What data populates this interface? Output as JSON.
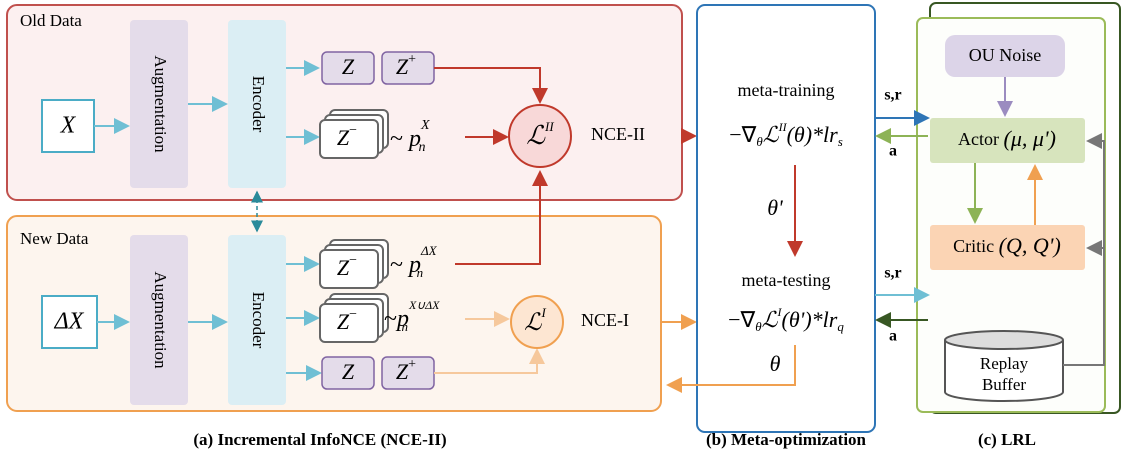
{
  "old_data": {
    "label": "Old Data",
    "input": "X",
    "augmentation": "Augmentation",
    "encoder": "Encoder",
    "z": "Z",
    "z_plus": {
      "base": "Z",
      "sup": "+"
    },
    "z_minus": {
      "base": "Z",
      "sup": "−"
    },
    "dist": {
      "prefix": "~ ",
      "base": "p",
      "sub": "n",
      "sup": "X"
    },
    "loss": {
      "base": "ℒ",
      "sup": "II"
    },
    "loss_name": "NCE-II"
  },
  "new_data": {
    "label": "New Data",
    "input": "ΔX",
    "augmentation": "Augmentation",
    "encoder": "Encoder",
    "z_minus_1": {
      "base": "Z",
      "sup": "−"
    },
    "dist_1": {
      "prefix": "~ ",
      "base": "p",
      "sub": "n",
      "sup": "ΔX"
    },
    "z_minus_2": {
      "base": "Z",
      "sup": "−"
    },
    "dist_2": {
      "prefix": "~",
      "base": "p",
      "sub": "n",
      "sup": "X∪ΔX"
    },
    "z": "Z",
    "z_plus": {
      "base": "Z",
      "sup": "+"
    },
    "loss": {
      "base": "ℒ",
      "sup": "I"
    },
    "loss_name": "NCE-I"
  },
  "meta": {
    "training": "meta-training",
    "training_formula": {
      "a": "−∇",
      "a_sub": "θ",
      "b": "ℒ",
      "b_sup": "II",
      "c": "(θ)*",
      "d": "lr",
      "d_sub": "s"
    },
    "theta_prime": "θ'",
    "testing": "meta-testing",
    "testing_formula": {
      "a": "−∇",
      "a_sub": "θ",
      "b": "ℒ",
      "b_sup": "I",
      "c": "(θ')*",
      "d": "lr",
      "d_sub": "q"
    },
    "theta": "θ"
  },
  "lrl": {
    "state_1": "s,r",
    "action_1": "a",
    "state_2": "s,r",
    "action_2": "a",
    "noise": "OU Noise",
    "actor": {
      "name": "Actor",
      "params": "(μ, μ')"
    },
    "critic": {
      "name": "Critic",
      "params": "(Q, Q')"
    },
    "buffer": [
      "Replay",
      "Buffer"
    ]
  },
  "captions": [
    "(a) Incremental InfoNCE (NCE-II)",
    "(b) Meta-optimization",
    "(c) LRL"
  ]
}
